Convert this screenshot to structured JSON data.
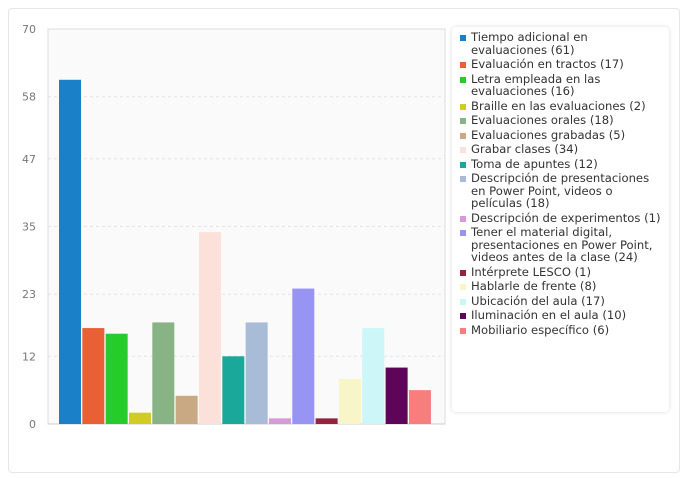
{
  "chart_data": {
    "type": "bar",
    "ylim": [
      0,
      70
    ],
    "yticks": [
      0,
      12,
      23,
      35,
      47,
      58,
      70
    ],
    "grid": true,
    "legend_position": "right",
    "series": [
      {
        "name": "Tiempo adicional en evaluaciones (61)",
        "value": 61,
        "color": "#1a81c9"
      },
      {
        "name": "Evaluación en tractos (17)",
        "value": 17,
        "color": "#e95f36"
      },
      {
        "name": "Letra empleada en las evaluaciones (16)",
        "value": 16,
        "color": "#26cc2a"
      },
      {
        "name": "Braille en las evaluaciones (2)",
        "value": 2,
        "color": "#d0cc25"
      },
      {
        "name": "Evaluaciones orales (18)",
        "value": 18,
        "color": "#88b384"
      },
      {
        "name": "Evaluaciones grabadas (5)",
        "value": 5,
        "color": "#c8a984"
      },
      {
        "name": "Grabar clases (34)",
        "value": 34,
        "color": "#fbe1da"
      },
      {
        "name": "Toma de apuntes (12)",
        "value": 12,
        "color": "#1aa89a"
      },
      {
        "name": "Descripción de presentaciones en Power Point, videos o películas (18)",
        "value": 18,
        "color": "#a8bcd7"
      },
      {
        "name": "Descripción de experimentos (1)",
        "value": 1,
        "color": "#d49ad9"
      },
      {
        "name": "Tener el material digital, presentaciones en Power Point, videos antes de la clase (24)",
        "value": 24,
        "color": "#9794f4"
      },
      {
        "name": "Intérprete LESCO (1)",
        "value": 1,
        "color": "#93233f"
      },
      {
        "name": "Hablarle de frente (8)",
        "value": 8,
        "color": "#f8f5c9"
      },
      {
        "name": "Ubicación del aula (17)",
        "value": 17,
        "color": "#ccf6f7"
      },
      {
        "name": "Iluminación en el aula (10)",
        "value": 10,
        "color": "#5e0559"
      },
      {
        "name": "Mobiliario específico (6)",
        "value": 6,
        "color": "#f77e7d"
      }
    ]
  }
}
